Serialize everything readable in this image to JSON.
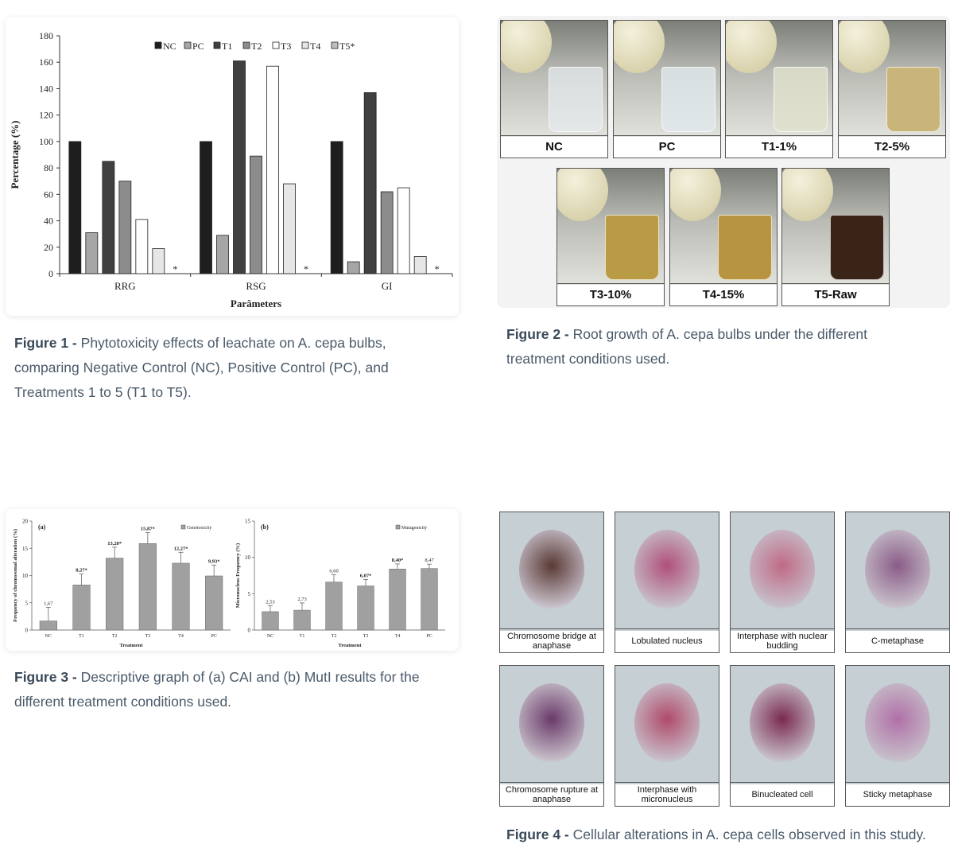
{
  "figures": [
    {
      "chart": {
        "type": "bar",
        "categories": [
          "RRG",
          "RSG",
          "GI"
        ],
        "series": [
          {
            "name": "NC",
            "color": "#1e1e1e",
            "values": [
              100,
              100,
              100
            ]
          },
          {
            "name": "PC",
            "color": "#a6a6a6",
            "values": [
              31,
              29,
              9
            ]
          },
          {
            "name": "T1",
            "color": "#404040",
            "values": [
              85,
              161,
              137
            ]
          },
          {
            "name": "T2",
            "color": "#8c8c8c",
            "values": [
              70,
              89,
              62
            ]
          },
          {
            "name": "T3",
            "color": "#ffffff",
            "values": [
              41,
              157,
              65
            ]
          },
          {
            "name": "T4",
            "color": "#e6e6e6",
            "values": [
              19,
              68,
              13
            ]
          },
          {
            "name": "T5*",
            "color": "#bfbfbf",
            "values": [
              null,
              null,
              null
            ],
            "value_labels": [
              "*",
              "*",
              "*"
            ]
          }
        ],
        "ylim": [
          0,
          180
        ],
        "yticks": [
          0,
          20,
          40,
          60,
          80,
          100,
          120,
          140,
          160,
          180
        ],
        "ylabel": "Percentage (%)",
        "xlabel": "Parâmeters"
      },
      "caption": {
        "label": "Figure 1 -",
        "text": "Phytotoxicity effects of leachate on A. cepa bulbs, comparing Negative Control (NC), Positive Control (PC), and Treatments 1 to 5 (T1 to T5)."
      }
    },
    {
      "panels": [
        "NC",
        "PC",
        "T1-1%",
        "T2-5%",
        "T3-10%",
        "T4-15%",
        "T5-Raw"
      ],
      "caption": {
        "label": "Figure 2 -",
        "text": "Root growth of A. cepa bulbs under the different treatment conditions used."
      }
    },
    {
      "charts": [
        {
          "type": "bar",
          "panel_label": "(a)",
          "categories": [
            "NC",
            "T1",
            "T2",
            "T3",
            "T4",
            "PC"
          ],
          "series": [
            {
              "name": "Genotoxicity",
              "color": "#a0a0a0",
              "values": [
                1.67,
                8.27,
                13.2,
                15.87,
                12.27,
                9.93
              ],
              "value_labels": [
                "1,67",
                "8,27*",
                "13,20*",
                "15,87*",
                "12,27*",
                "9,93*"
              ],
              "errors": [
                2.5,
                2,
                2,
                2,
                2,
                2
              ]
            }
          ],
          "ylim": [
            0,
            20
          ],
          "yticks": [
            0,
            5,
            10,
            15,
            20
          ],
          "ylabel": "Frequency of chromosomal alteration (%)",
          "xlabel": "Treatment"
        },
        {
          "type": "bar",
          "panel_label": "(b)",
          "categories": [
            "NC",
            "T1",
            "T2",
            "T3",
            "T4",
            "PC"
          ],
          "series": [
            {
              "name": "Mutagenicity",
              "color": "#a0a0a0",
              "values": [
                2.53,
                2.73,
                6.6,
                6.07,
                8.4,
                8.47
              ],
              "value_labels": [
                "2,53",
                "2,73",
                "6,60",
                "6,07*",
                "8,40*",
                "8,47"
              ],
              "errors": [
                0.8,
                1,
                1,
                0.9,
                0.7,
                0.6
              ]
            }
          ],
          "ylim": [
            0,
            15
          ],
          "yticks": [
            0,
            5,
            10,
            15
          ],
          "ylabel": "Micronucleus Frequency (%)",
          "xlabel": "Treatment"
        }
      ],
      "caption": {
        "label": "Figure 3 -",
        "text": "Descriptive graph of (a) CAI and (b) MutI results for the different treatment conditions used."
      }
    },
    {
      "panels": [
        "Chromosome bridge at anaphase",
        "Lobulated nucleus",
        "Interphase with nuclear budding",
        "C-metaphase",
        "Chromosome rupture at anaphase",
        "Interphase with micronucleus",
        "Binucleated cell",
        "Sticky metaphase"
      ],
      "caption": {
        "label": "Figure 4 -",
        "text": "Cellular alterations in A. cepa cells observed in this study."
      }
    }
  ]
}
